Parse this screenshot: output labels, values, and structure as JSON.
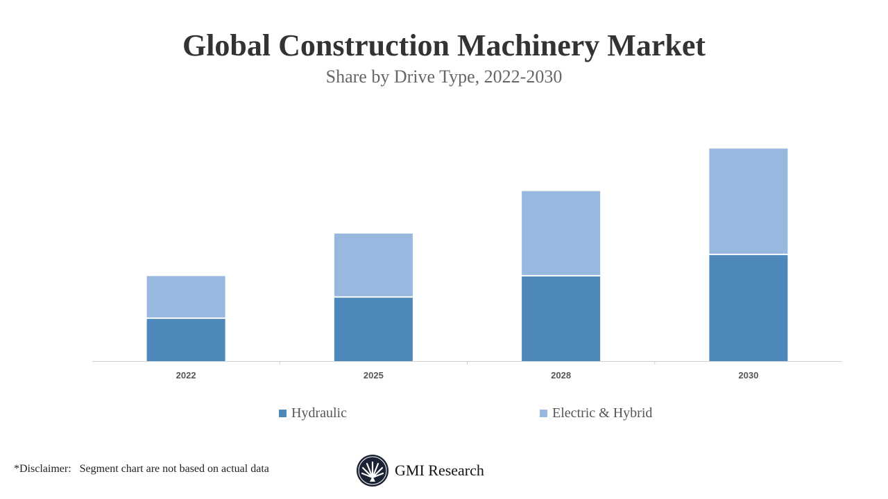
{
  "chart_data": {
    "type": "bar",
    "stacked": true,
    "title": "Global Construction Machinery Market",
    "subtitle": "Share by Drive Type, 2022-2030",
    "categories": [
      "2022",
      "2025",
      "2028",
      "2030"
    ],
    "series": [
      {
        "name": "Hydraulic",
        "values": [
          20,
          30,
          40,
          50
        ],
        "color": "#4e87b9"
      },
      {
        "name": "Electric & Hybrid",
        "values": [
          20,
          30,
          40,
          50
        ],
        "color": "#98b8df"
      }
    ],
    "xlabel": "",
    "ylabel": "",
    "ylim": [
      0,
      120
    ],
    "grid": false,
    "legend": "bottom"
  },
  "footer": {
    "disclaimer": "*Disclaimer:   Segment chart are not based on actual data",
    "logo_text": "GMI Research"
  }
}
